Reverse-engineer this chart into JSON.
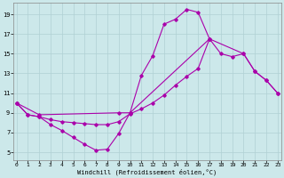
{
  "background_color": "#cce8ea",
  "grid_color": "#b0d0d4",
  "line_color": "#aa00aa",
  "xlim": [
    -0.3,
    23.3
  ],
  "ylim": [
    4.2,
    20.2
  ],
  "xticks": [
    0,
    1,
    2,
    3,
    4,
    5,
    6,
    7,
    8,
    9,
    10,
    11,
    12,
    13,
    14,
    15,
    16,
    17,
    18,
    19,
    20,
    21,
    22,
    23
  ],
  "yticks": [
    5,
    7,
    9,
    11,
    13,
    15,
    17,
    19
  ],
  "xlabel": "Windchill (Refroidissement éolien,°C)",
  "line1_x": [
    0,
    1,
    2,
    3,
    4,
    5,
    6,
    7,
    8,
    9,
    10,
    11,
    12,
    13,
    14,
    15,
    16,
    17
  ],
  "line1_y": [
    10.0,
    8.8,
    8.6,
    7.8,
    7.2,
    6.5,
    5.8,
    5.2,
    5.3,
    6.9,
    9.0,
    12.8,
    14.8,
    18.0,
    18.5,
    19.5,
    19.2,
    16.5
  ],
  "line2_x": [
    0,
    1,
    2,
    3,
    4,
    5,
    6,
    7,
    8,
    9,
    10,
    11,
    12,
    13,
    14,
    15,
    16,
    17,
    18,
    19,
    20,
    21,
    22,
    23
  ],
  "line2_y": [
    10.0,
    8.8,
    8.6,
    8.3,
    8.1,
    8.0,
    7.9,
    7.8,
    7.8,
    8.1,
    8.9,
    9.4,
    10.0,
    10.8,
    11.8,
    12.7,
    13.5,
    16.5,
    15.0,
    14.7,
    15.0,
    13.2,
    12.3,
    11.0
  ],
  "line3_x": [
    0,
    2,
    9,
    10,
    17,
    20,
    21,
    22,
    23
  ],
  "line3_y": [
    10.0,
    8.8,
    9.0,
    9.0,
    16.5,
    15.0,
    13.2,
    12.3,
    11.0
  ]
}
